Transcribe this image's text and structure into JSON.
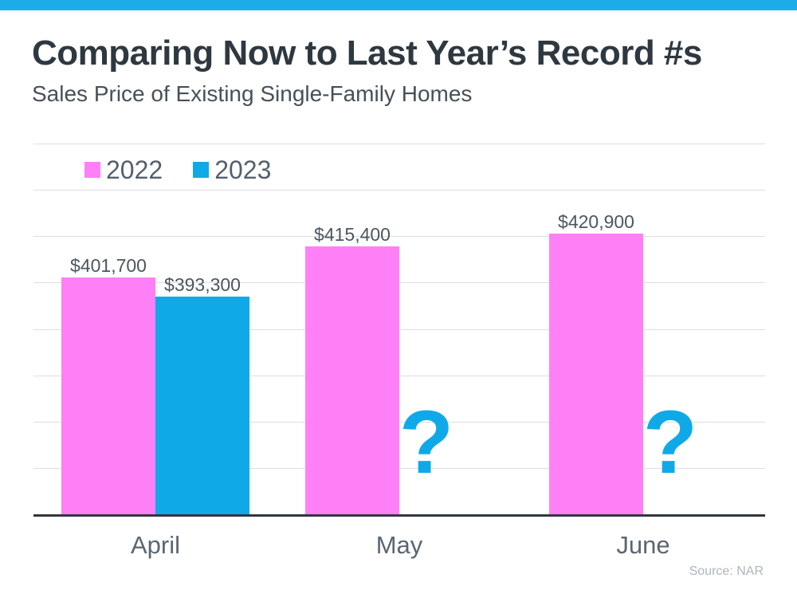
{
  "page": {
    "top_bar_color": "#1EACE9",
    "background_color": "#FFFFFF"
  },
  "header": {
    "title": "Comparing Now to Last Year’s Record #s",
    "subtitle": "Sales Price of Existing Single-Family Homes"
  },
  "chart_data": {
    "type": "bar",
    "title": "Comparing Now to Last Year’s Record #s",
    "subtitle": "Sales Price of Existing Single-Family Homes",
    "categories": [
      "April",
      "May",
      "June"
    ],
    "series": [
      {
        "name": "2022",
        "color": "#FF80F6",
        "values": [
          401700,
          415400,
          420900
        ],
        "data_labels": [
          "$401,700",
          "$415,400",
          "$420,900"
        ]
      },
      {
        "name": "2023",
        "color": "#10A9E8",
        "values": [
          393300,
          null,
          null
        ],
        "data_labels": [
          "$393,300",
          "?",
          "?"
        ]
      }
    ],
    "missing_marker": "?",
    "ylim": [
      298000,
      460400
    ],
    "grid": true,
    "grid_color": "#DEDEDE",
    "axis_color": "#32373D",
    "value_label_color": "#4C565F",
    "category_label_color": "#5B6670",
    "legend_position": "top-left",
    "source": "Source: NAR"
  }
}
